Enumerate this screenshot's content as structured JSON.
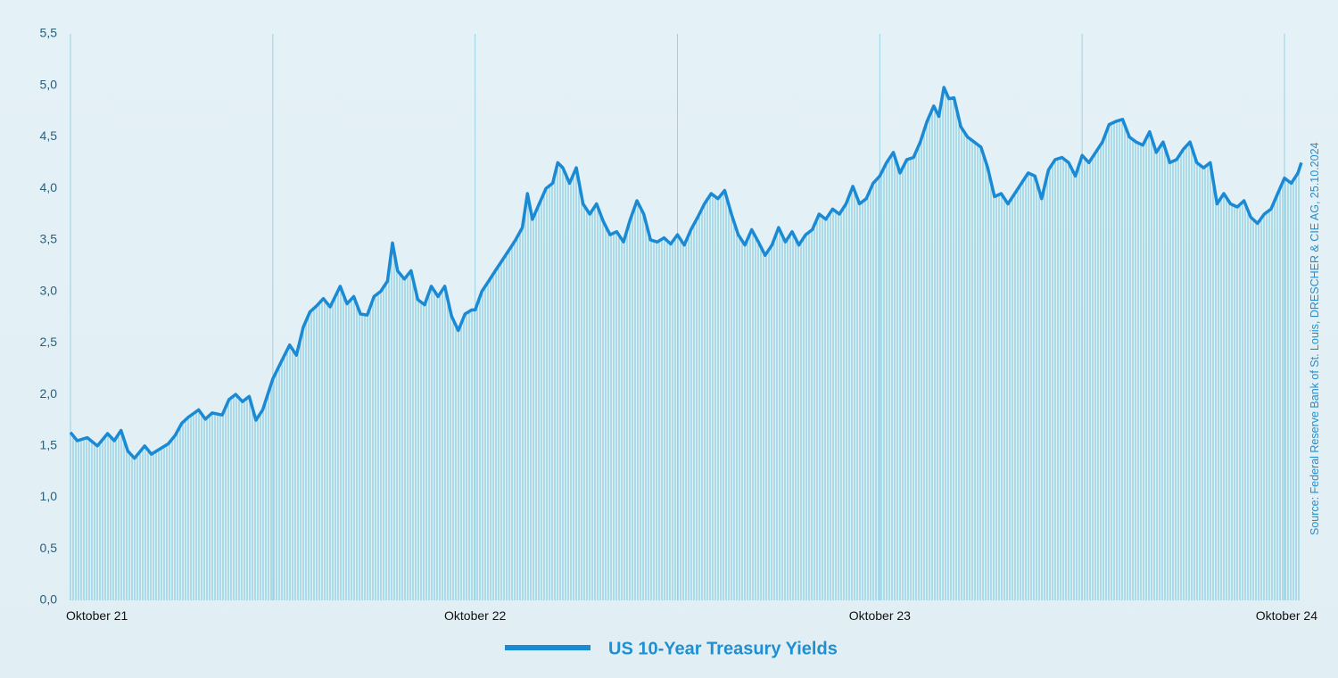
{
  "colors": {
    "line": "#1a8ad4",
    "area_stroke": "#8ecfe2",
    "area_fill": "#cbe6ef",
    "grid": "#9bd1e3",
    "axis_text": "#2a5f7a"
  },
  "legend": {
    "label": "US 10-Year Treasury Yields",
    "position": "bottom-center"
  },
  "source_text": "Source: Federal Reserve Bank of St. Louis, DRESCHER & CIE AG, 25.10.2024",
  "chart_data": {
    "type": "line",
    "title": "",
    "xlabel": "",
    "ylabel": "",
    "ylim": [
      0,
      5.5
    ],
    "grid": "vertical",
    "legend_placement": "bottom-center",
    "yticks": [
      "0,0",
      "0,5",
      "1,0",
      "1,5",
      "2,0",
      "2,5",
      "3,0",
      "3,5",
      "4,0",
      "4,5",
      "5,0",
      "5,5"
    ],
    "xticks": [
      {
        "t": 0,
        "label": "Oktober 21"
      },
      {
        "t": 12,
        "label": "Oktober 22"
      },
      {
        "t": 24,
        "label": "Oktober 23"
      },
      {
        "t": 36,
        "label": "Oktober 24"
      }
    ],
    "x_range_months": [
      0,
      36
    ],
    "series": [
      {
        "name": "US 10-Year Treasury Yields",
        "points": [
          [
            0,
            1.63
          ],
          [
            0.2,
            1.55
          ],
          [
            0.5,
            1.58
          ],
          [
            0.8,
            1.5
          ],
          [
            1.1,
            1.62
          ],
          [
            1.3,
            1.55
          ],
          [
            1.5,
            1.65
          ],
          [
            1.7,
            1.45
          ],
          [
            1.9,
            1.38
          ],
          [
            2.2,
            1.5
          ],
          [
            2.4,
            1.42
          ],
          [
            2.7,
            1.48
          ],
          [
            2.9,
            1.52
          ],
          [
            3.1,
            1.6
          ],
          [
            3.3,
            1.72
          ],
          [
            3.5,
            1.78
          ],
          [
            3.8,
            1.85
          ],
          [
            4.0,
            1.76
          ],
          [
            4.2,
            1.82
          ],
          [
            4.5,
            1.8
          ],
          [
            4.7,
            1.95
          ],
          [
            4.9,
            2.0
          ],
          [
            5.1,
            1.93
          ],
          [
            5.3,
            1.98
          ],
          [
            5.5,
            1.75
          ],
          [
            5.7,
            1.85
          ],
          [
            6.0,
            2.15
          ],
          [
            6.3,
            2.35
          ],
          [
            6.5,
            2.48
          ],
          [
            6.7,
            2.38
          ],
          [
            6.9,
            2.65
          ],
          [
            7.1,
            2.8
          ],
          [
            7.3,
            2.86
          ],
          [
            7.5,
            2.93
          ],
          [
            7.7,
            2.85
          ],
          [
            8.0,
            3.05
          ],
          [
            8.2,
            2.88
          ],
          [
            8.4,
            2.95
          ],
          [
            8.6,
            2.78
          ],
          [
            8.8,
            2.77
          ],
          [
            9.0,
            2.95
          ],
          [
            9.2,
            3.0
          ],
          [
            9.4,
            3.1
          ],
          [
            9.55,
            3.47
          ],
          [
            9.7,
            3.2
          ],
          [
            9.9,
            3.12
          ],
          [
            10.1,
            3.2
          ],
          [
            10.3,
            2.92
          ],
          [
            10.5,
            2.87
          ],
          [
            10.7,
            3.05
          ],
          [
            10.9,
            2.95
          ],
          [
            11.1,
            3.05
          ],
          [
            11.3,
            2.76
          ],
          [
            11.5,
            2.62
          ],
          [
            11.7,
            2.78
          ],
          [
            11.9,
            2.82
          ],
          [
            12.0,
            2.82
          ],
          [
            12.2,
            3.0
          ],
          [
            12.4,
            3.1
          ],
          [
            12.6,
            3.2
          ],
          [
            12.8,
            3.3
          ],
          [
            13.0,
            3.4
          ],
          [
            13.2,
            3.5
          ],
          [
            13.4,
            3.62
          ],
          [
            13.55,
            3.95
          ],
          [
            13.7,
            3.7
          ],
          [
            13.9,
            3.85
          ],
          [
            14.1,
            4.0
          ],
          [
            14.3,
            4.05
          ],
          [
            14.45,
            4.25
          ],
          [
            14.6,
            4.2
          ],
          [
            14.8,
            4.05
          ],
          [
            15.0,
            4.2
          ],
          [
            15.2,
            3.85
          ],
          [
            15.4,
            3.75
          ],
          [
            15.6,
            3.85
          ],
          [
            15.8,
            3.68
          ],
          [
            16.0,
            3.55
          ],
          [
            16.2,
            3.58
          ],
          [
            16.4,
            3.48
          ],
          [
            16.6,
            3.7
          ],
          [
            16.8,
            3.88
          ],
          [
            17.0,
            3.75
          ],
          [
            17.2,
            3.5
          ],
          [
            17.4,
            3.48
          ],
          [
            17.6,
            3.52
          ],
          [
            17.8,
            3.46
          ],
          [
            18.0,
            3.55
          ],
          [
            18.2,
            3.45
          ],
          [
            18.4,
            3.6
          ],
          [
            18.6,
            3.72
          ],
          [
            18.8,
            3.85
          ],
          [
            19.0,
            3.95
          ],
          [
            19.2,
            3.9
          ],
          [
            19.4,
            3.98
          ],
          [
            19.6,
            3.75
          ],
          [
            19.8,
            3.55
          ],
          [
            20.0,
            3.45
          ],
          [
            20.2,
            3.6
          ],
          [
            20.4,
            3.48
          ],
          [
            20.6,
            3.35
          ],
          [
            20.8,
            3.45
          ],
          [
            21.0,
            3.62
          ],
          [
            21.2,
            3.48
          ],
          [
            21.4,
            3.58
          ],
          [
            21.6,
            3.45
          ],
          [
            21.8,
            3.55
          ],
          [
            22.0,
            3.6
          ],
          [
            22.2,
            3.75
          ],
          [
            22.4,
            3.7
          ],
          [
            22.6,
            3.8
          ],
          [
            22.8,
            3.75
          ],
          [
            23.0,
            3.85
          ],
          [
            23.2,
            4.02
          ],
          [
            23.4,
            3.85
          ],
          [
            23.6,
            3.9
          ],
          [
            23.8,
            4.05
          ],
          [
            24.0,
            4.12
          ],
          [
            24.2,
            4.25
          ],
          [
            24.4,
            4.35
          ],
          [
            24.6,
            4.15
          ],
          [
            24.8,
            4.28
          ],
          [
            25.0,
            4.3
          ],
          [
            25.2,
            4.45
          ],
          [
            25.4,
            4.65
          ],
          [
            25.6,
            4.8
          ],
          [
            25.75,
            4.7
          ],
          [
            25.9,
            4.98
          ],
          [
            26.05,
            4.87
          ],
          [
            26.2,
            4.88
          ],
          [
            26.4,
            4.6
          ],
          [
            26.6,
            4.5
          ],
          [
            26.8,
            4.45
          ],
          [
            27.0,
            4.4
          ],
          [
            27.2,
            4.2
          ],
          [
            27.4,
            3.92
          ],
          [
            27.6,
            3.95
          ],
          [
            27.8,
            3.85
          ],
          [
            28.0,
            3.95
          ],
          [
            28.2,
            4.05
          ],
          [
            28.4,
            4.15
          ],
          [
            28.6,
            4.12
          ],
          [
            28.8,
            3.9
          ],
          [
            29.0,
            4.18
          ],
          [
            29.2,
            4.28
          ],
          [
            29.4,
            4.3
          ],
          [
            29.6,
            4.25
          ],
          [
            29.8,
            4.12
          ],
          [
            30.0,
            4.32
          ],
          [
            30.2,
            4.25
          ],
          [
            30.4,
            4.35
          ],
          [
            30.6,
            4.45
          ],
          [
            30.8,
            4.62
          ],
          [
            31.0,
            4.65
          ],
          [
            31.2,
            4.67
          ],
          [
            31.4,
            4.5
          ],
          [
            31.6,
            4.45
          ],
          [
            31.8,
            4.42
          ],
          [
            32.0,
            4.55
          ],
          [
            32.2,
            4.35
          ],
          [
            32.4,
            4.45
          ],
          [
            32.6,
            4.25
          ],
          [
            32.8,
            4.28
          ],
          [
            33.0,
            4.38
          ],
          [
            33.2,
            4.45
          ],
          [
            33.4,
            4.25
          ],
          [
            33.6,
            4.2
          ],
          [
            33.8,
            4.25
          ],
          [
            34.0,
            3.85
          ],
          [
            34.2,
            3.95
          ],
          [
            34.4,
            3.85
          ],
          [
            34.6,
            3.82
          ],
          [
            34.8,
            3.88
          ],
          [
            35.0,
            3.72
          ],
          [
            35.2,
            3.66
          ],
          [
            35.4,
            3.75
          ],
          [
            35.6,
            3.8
          ],
          [
            35.8,
            3.95
          ],
          [
            36.0,
            4.1
          ],
          [
            36.2,
            4.05
          ],
          [
            36.4,
            4.15
          ],
          [
            36.5,
            4.25
          ]
        ]
      }
    ]
  }
}
